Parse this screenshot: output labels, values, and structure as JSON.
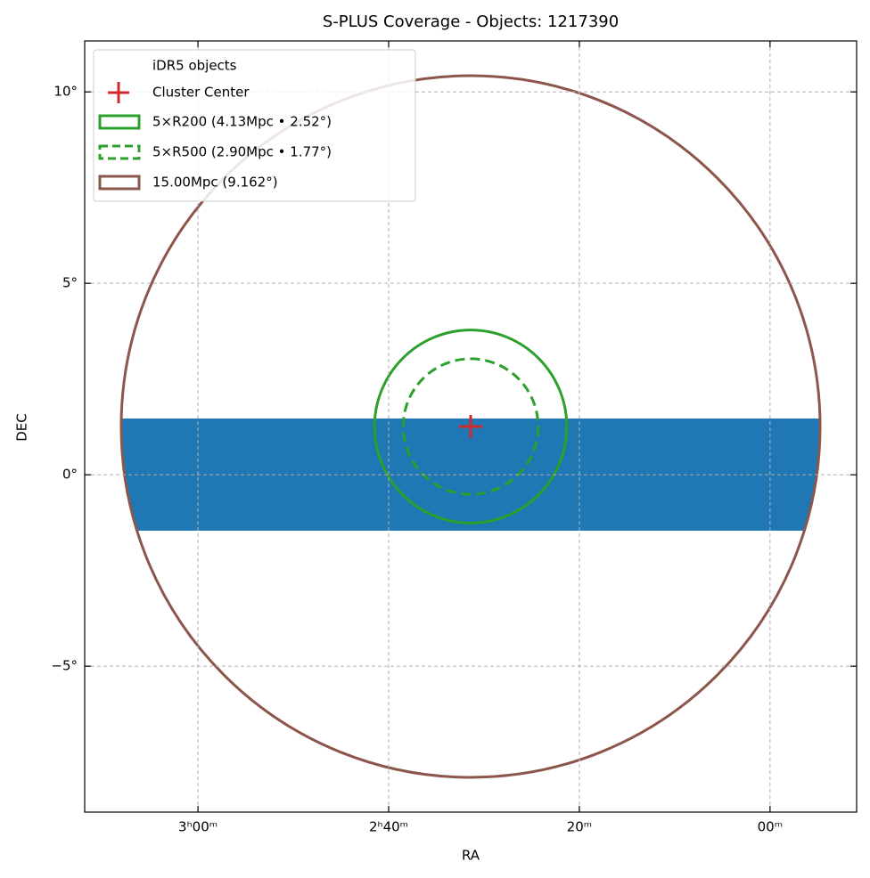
{
  "chart_data": {
    "type": "sky",
    "title": "S-PLUS Coverage - Objects: 1217390",
    "x_label": "RA",
    "y_label": "DEC",
    "xlim": [
      47.97,
      27.73
    ],
    "ylim": [
      -8.81,
      11.33
    ],
    "xticks": [
      {
        "value": 45,
        "label": "3ʰ00ᵐ"
      },
      {
        "value": 40,
        "label": "2ʰ40ᵐ"
      },
      {
        "value": 35,
        "label": "20ᵐ"
      },
      {
        "value": 30,
        "label": "00ᵐ"
      }
    ],
    "yticks": [
      {
        "value": 10,
        "label": "10°"
      },
      {
        "value": 5,
        "label": "5°"
      },
      {
        "value": 0,
        "label": "0°"
      },
      {
        "value": -5,
        "label": "−5°"
      }
    ],
    "grid": true,
    "legend": "upper left",
    "series": [
      {
        "name": "iDR5 objects",
        "kind": "band",
        "color": "#1f77b4",
        "dec": [
          -1.46,
          1.47
        ]
      },
      {
        "name": "Cluster Center",
        "kind": "point",
        "color": "#d62728",
        "x": [
          37.85
        ],
        "values": [
          1.26
        ]
      },
      {
        "name": "5×R200 (4.13Mpc • 2.52°)",
        "kind": "circle",
        "color": "#2ca02c",
        "radius": 2.52,
        "dashed": false
      },
      {
        "name": "5×R500 (2.90Mpc • 1.77°)",
        "kind": "circle",
        "color": "#2ca02c",
        "radius": 1.77,
        "dashed": true
      },
      {
        "name": "15.00Mpc (9.162°)",
        "kind": "circle",
        "color": "#8c564b",
        "radius": 9.162,
        "dashed": false
      }
    ]
  }
}
